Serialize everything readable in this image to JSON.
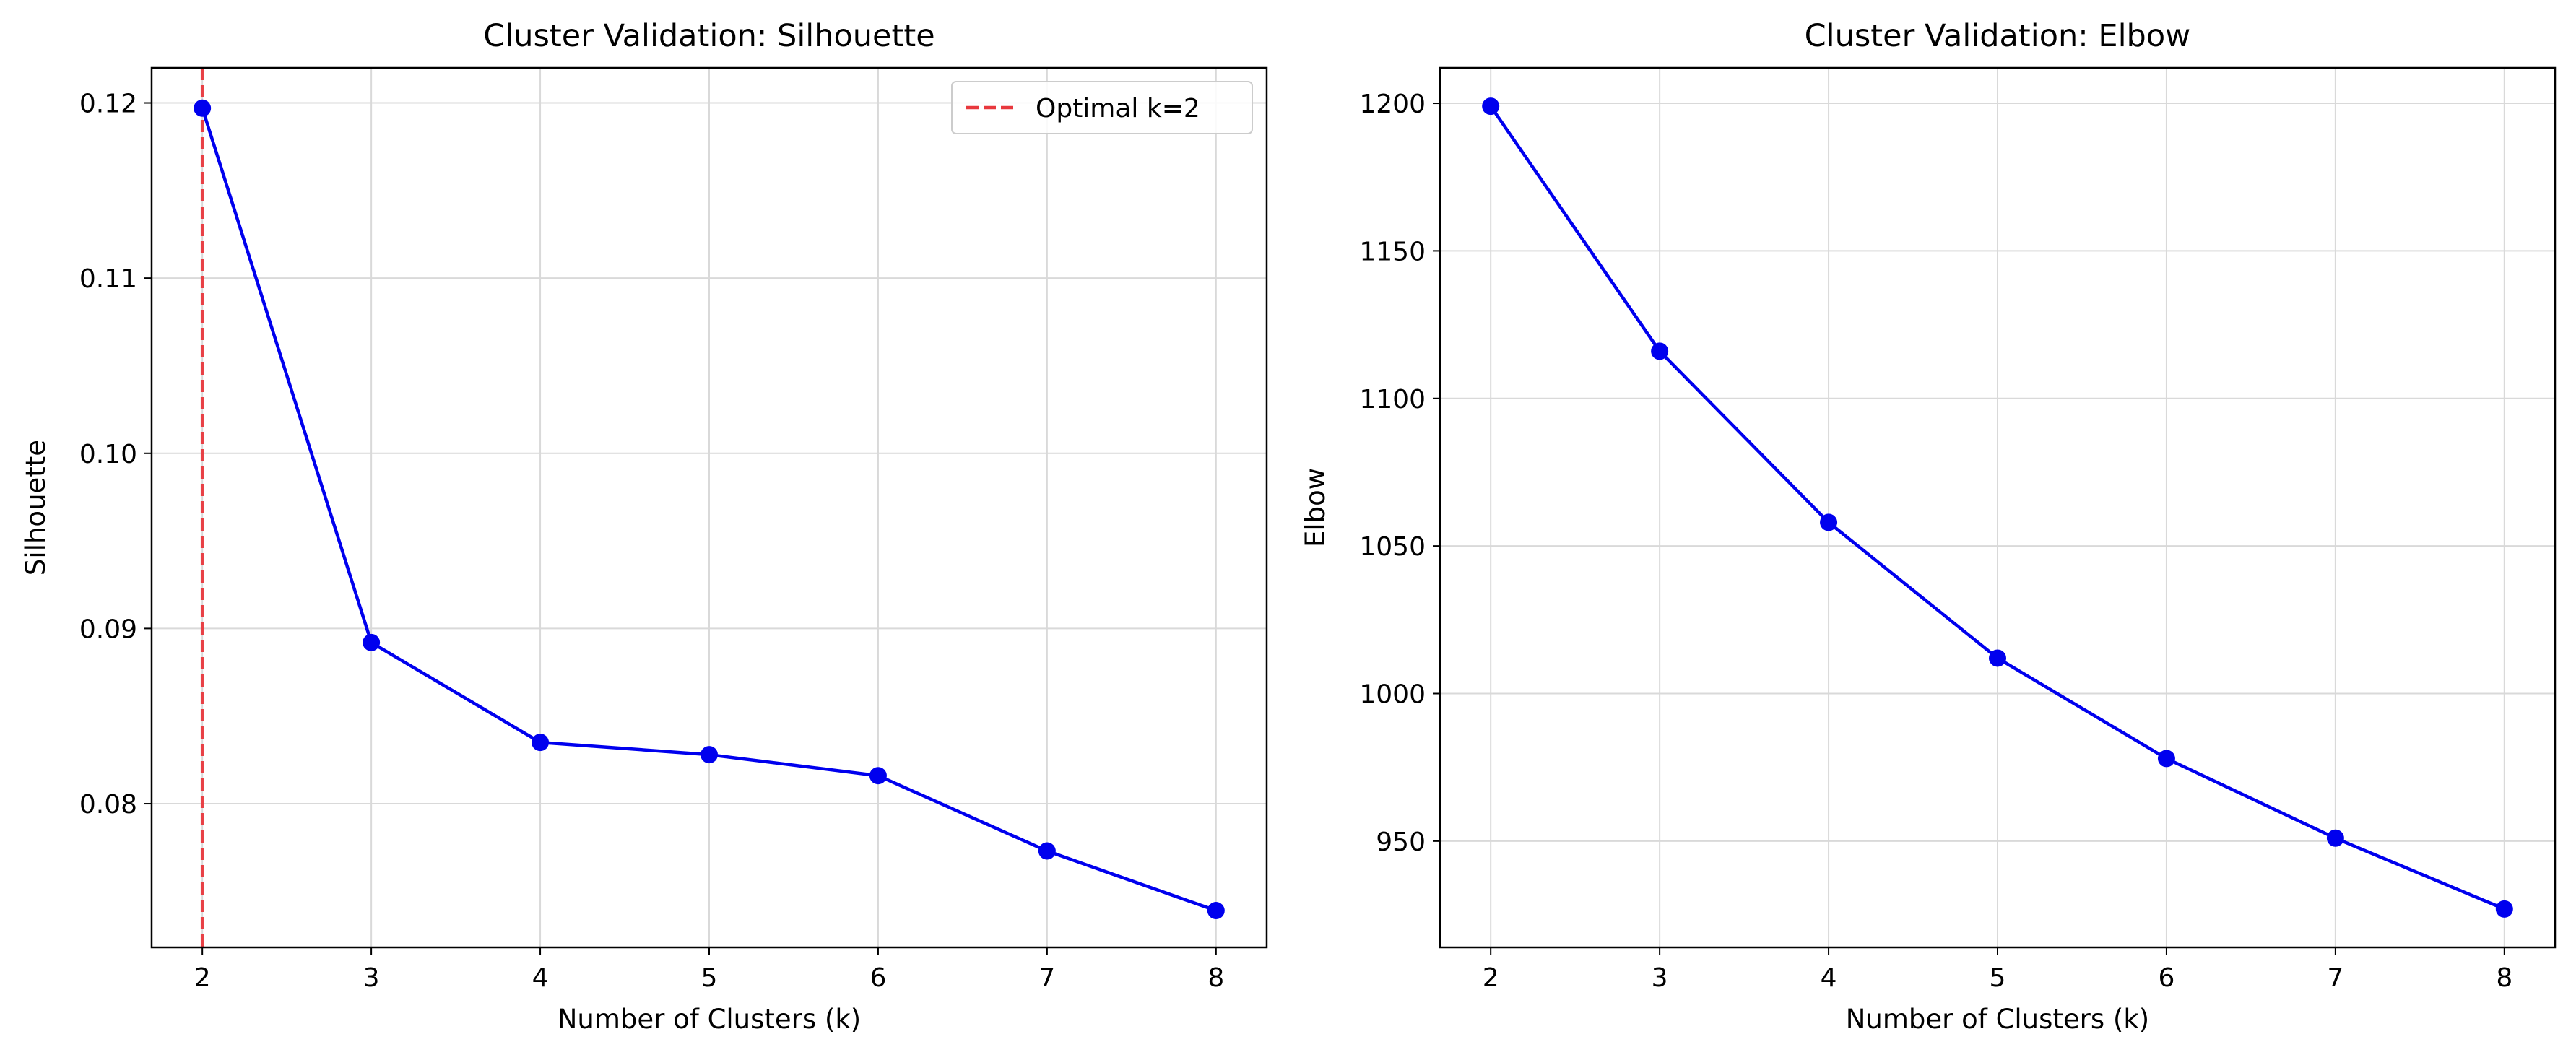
{
  "chart_data": [
    {
      "type": "line",
      "title": "Cluster Validation: Silhouette",
      "xlabel": "Number of Clusters (k)",
      "ylabel": "Silhouette",
      "x": [
        2,
        3,
        4,
        5,
        6,
        7,
        8
      ],
      "y": [
        0.1197,
        0.0892,
        0.0835,
        0.0828,
        0.0816,
        0.0773,
        0.0739
      ],
      "xlim": [
        1.7,
        8.3
      ],
      "ylim": [
        0.0718,
        0.122
      ],
      "xticks": [
        2,
        3,
        4,
        5,
        6,
        7,
        8
      ],
      "yticks": [
        0.08,
        0.09,
        0.1,
        0.11,
        0.12
      ],
      "ytick_labels": [
        "0.08",
        "0.09",
        "0.10",
        "0.11",
        "0.12"
      ],
      "grid": true,
      "line_color": "#0000ee",
      "vline": {
        "x": 2,
        "label": "Optimal k=2",
        "color": "#e8383d",
        "style": "dashed"
      },
      "legend_position": "top-right"
    },
    {
      "type": "line",
      "title": "Cluster Validation: Elbow",
      "xlabel": "Number of Clusters (k)",
      "ylabel": "Elbow",
      "x": [
        2,
        3,
        4,
        5,
        6,
        7,
        8
      ],
      "y": [
        1199,
        1116,
        1058,
        1012,
        978,
        951,
        927
      ],
      "xlim": [
        1.7,
        8.3
      ],
      "ylim": [
        914,
        1212
      ],
      "xticks": [
        2,
        3,
        4,
        5,
        6,
        7,
        8
      ],
      "yticks": [
        950,
        1000,
        1050,
        1100,
        1150,
        1200
      ],
      "ytick_labels": [
        "950",
        "1000",
        "1050",
        "1100",
        "1150",
        "1200"
      ],
      "grid": true,
      "line_color": "#0000ee"
    }
  ]
}
